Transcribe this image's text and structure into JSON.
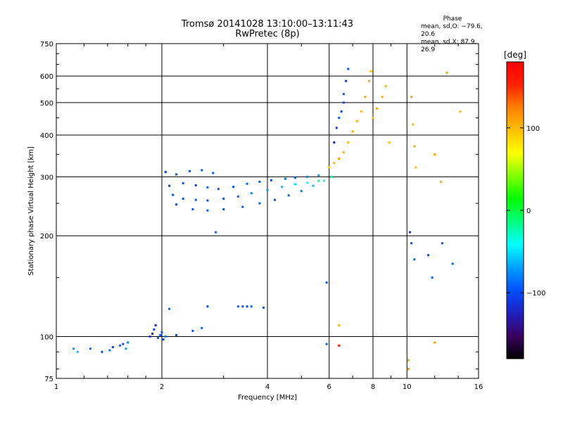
{
  "chart_data": {
    "type": "scatter",
    "title": "Tromsø 20141028 13:10:00–13:11:43",
    "subtitle": "RwPretec (8p)",
    "xlabel": "Frequency [MHz]",
    "ylabel": "Stationary phase Virtual Height [km]",
    "x_scale": "log",
    "y_scale": "log",
    "xlim": [
      1,
      16
    ],
    "ylim": [
      75,
      750
    ],
    "x_ticks": [
      1,
      2,
      4,
      6,
      8,
      10,
      16
    ],
    "x_tick_labels": [
      "1",
      "2",
      "4",
      "6",
      "8",
      "10",
      "16"
    ],
    "y_ticks": [
      75,
      100,
      200,
      300,
      400,
      500,
      600,
      750
    ],
    "y_tick_labels": [
      "75",
      "100",
      "200",
      "300",
      "400",
      "500",
      "600",
      "750"
    ],
    "grid": true,
    "stats": {
      "heading": "Phase",
      "line_o": "mean, sd,O: −79.6, 20.6",
      "line_x": "mean, sd,X: 87.9, 26.9"
    },
    "colorbar": {
      "unit": "[deg]",
      "range": [
        -180,
        180
      ],
      "ticks": [
        100,
        0,
        -100
      ],
      "tick_labels": [
        "100",
        "0",
        "−100"
      ],
      "palette": [
        "#000000",
        "#3a0060",
        "#2020c0",
        "#0050ff",
        "#00a0ff",
        "#00ffff",
        "#00ff80",
        "#00ff00",
        "#80ff00",
        "#ffff00",
        "#ffc000",
        "#ff8000",
        "#ff2000",
        "#ff0000"
      ]
    },
    "series": [
      {
        "points": [
          [
            1.12,
            92,
            -70
          ],
          [
            1.15,
            90,
            -60
          ],
          [
            1.25,
            92,
            -90
          ],
          [
            1.35,
            90,
            -100
          ],
          [
            1.42,
            91,
            -80
          ],
          [
            1.45,
            93,
            -95
          ],
          [
            1.52,
            94,
            -90
          ],
          [
            1.55,
            95,
            -100
          ],
          [
            1.58,
            92,
            -70
          ],
          [
            1.6,
            96,
            -80
          ],
          [
            1.85,
            100,
            -110
          ],
          [
            1.88,
            102,
            -130
          ],
          [
            1.9,
            105,
            -100
          ],
          [
            1.92,
            108,
            -120
          ],
          [
            1.95,
            99,
            -90
          ],
          [
            1.98,
            101,
            -100
          ],
          [
            2.0,
            103,
            -95
          ],
          [
            2.02,
            98,
            -110
          ],
          [
            2.05,
            100,
            -80
          ],
          [
            2.1,
            121,
            -90
          ],
          [
            2.2,
            101,
            -100
          ],
          [
            2.45,
            104,
            -95
          ],
          [
            2.6,
            106,
            -90
          ],
          [
            2.7,
            123,
            -100
          ],
          [
            2.85,
            205,
            -90
          ],
          [
            3.3,
            123,
            -90
          ],
          [
            3.4,
            123,
            -95
          ],
          [
            3.5,
            123,
            -100
          ],
          [
            3.6,
            123,
            -90
          ],
          [
            3.9,
            122,
            -95
          ],
          [
            2.05,
            310,
            -110
          ],
          [
            2.2,
            305,
            -100
          ],
          [
            2.4,
            312,
            -95
          ],
          [
            2.6,
            314,
            -90
          ],
          [
            2.8,
            308,
            -100
          ],
          [
            2.1,
            282,
            -100
          ],
          [
            2.3,
            287,
            -95
          ],
          [
            2.5,
            283,
            -100
          ],
          [
            2.7,
            279,
            -90
          ],
          [
            2.9,
            276,
            -95
          ],
          [
            3.2,
            280,
            -100
          ],
          [
            3.5,
            286,
            -90
          ],
          [
            3.8,
            290,
            -95
          ],
          [
            4.1,
            293,
            -100
          ],
          [
            4.5,
            296,
            -90
          ],
          [
            4.8,
            298,
            -95
          ],
          [
            5.2,
            300,
            -80
          ],
          [
            5.6,
            303,
            -70
          ],
          [
            2.15,
            265,
            -100
          ],
          [
            2.3,
            258,
            -95
          ],
          [
            2.5,
            256,
            -90
          ],
          [
            2.7,
            255,
            -100
          ],
          [
            3.0,
            258,
            -95
          ],
          [
            3.3,
            262,
            -90
          ],
          [
            3.6,
            268,
            -80
          ],
          [
            4.0,
            274,
            -70
          ],
          [
            4.4,
            280,
            -60
          ],
          [
            4.8,
            285,
            -50
          ],
          [
            5.2,
            288,
            -40
          ],
          [
            5.6,
            292,
            -20
          ],
          [
            2.2,
            248,
            -100
          ],
          [
            2.45,
            240,
            -95
          ],
          [
            2.7,
            238,
            -90
          ],
          [
            3.0,
            240,
            -100
          ],
          [
            3.4,
            244,
            -95
          ],
          [
            3.8,
            250,
            -90
          ],
          [
            4.2,
            256,
            -100
          ],
          [
            4.6,
            264,
            -90
          ],
          [
            5.0,
            272,
            -80
          ],
          [
            5.4,
            282,
            -60
          ],
          [
            5.8,
            292,
            -40
          ],
          [
            6.1,
            300,
            -20
          ],
          [
            6.0,
            320,
            90
          ],
          [
            6.2,
            330,
            100
          ],
          [
            6.4,
            340,
            110
          ],
          [
            6.6,
            355,
            105
          ],
          [
            6.8,
            380,
            100
          ],
          [
            7.0,
            410,
            110
          ],
          [
            7.2,
            440,
            105
          ],
          [
            7.4,
            470,
            100
          ],
          [
            7.6,
            520,
            110
          ],
          [
            7.8,
            580,
            105
          ],
          [
            7.9,
            620,
            100
          ],
          [
            6.3,
            420,
            -110
          ],
          [
            6.5,
            470,
            -100
          ],
          [
            6.6,
            530,
            -95
          ],
          [
            6.7,
            580,
            -110
          ],
          [
            6.8,
            630,
            -100
          ],
          [
            6.2,
            380,
            -120
          ],
          [
            6.4,
            450,
            -90
          ],
          [
            6.6,
            500,
            -100
          ],
          [
            8.0,
            450,
            100
          ],
          [
            8.2,
            480,
            110
          ],
          [
            8.5,
            520,
            105
          ],
          [
            8.7,
            560,
            100
          ],
          [
            8.9,
            380,
            100
          ],
          [
            10.3,
            520,
            110
          ],
          [
            10.4,
            430,
            100
          ],
          [
            10.5,
            370,
            105
          ],
          [
            10.6,
            320,
            100
          ],
          [
            12.0,
            350,
            110
          ],
          [
            12.5,
            290,
            105
          ],
          [
            10.2,
            205,
            -110
          ],
          [
            10.3,
            190,
            -100
          ],
          [
            10.5,
            170,
            -90
          ],
          [
            11.5,
            175,
            -100
          ],
          [
            11.8,
            150,
            -95
          ],
          [
            12.6,
            190,
            -100
          ],
          [
            13.5,
            165,
            -90
          ],
          [
            14.2,
            470,
            100
          ],
          [
            13.0,
            614,
            110
          ],
          [
            5.9,
            145,
            -100
          ],
          [
            5.9,
            95,
            -90
          ],
          [
            6.4,
            108,
            105
          ],
          [
            6.4,
            94,
            170
          ],
          [
            10.1,
            85,
            110
          ],
          [
            10.1,
            80,
            120
          ],
          [
            12.0,
            96,
            110
          ]
        ]
      }
    ]
  }
}
